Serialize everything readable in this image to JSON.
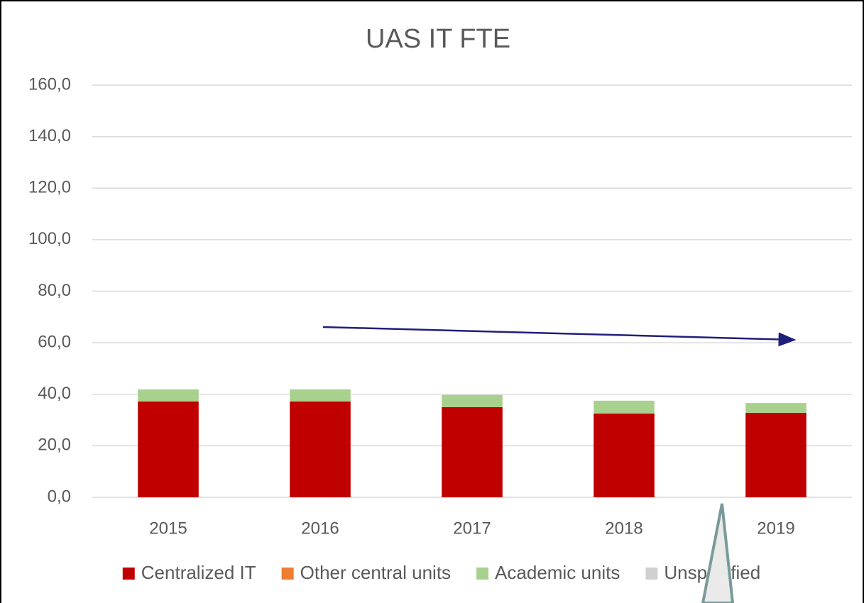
{
  "chart_data": {
    "type": "bar",
    "stacked": true,
    "title": "UAS IT FTE",
    "categories": [
      "2015",
      "2016",
      "2017",
      "2018",
      "2019"
    ],
    "series": [
      {
        "name": "Centralized IT",
        "color": "#c00000",
        "values": [
          37.2,
          37.2,
          35.0,
          32.5,
          32.8
        ]
      },
      {
        "name": "Other central units",
        "color": "#ed7d31",
        "values": [
          0,
          0,
          0,
          0,
          0
        ]
      },
      {
        "name": "Academic units",
        "color": "#a9d18e",
        "values": [
          4.7,
          4.7,
          4.7,
          5.0,
          3.8
        ]
      },
      {
        "name": "Unspecified",
        "color": "#d0d0d0",
        "values": [
          0,
          0,
          0,
          0,
          0
        ]
      }
    ],
    "ylim": [
      0,
      160
    ],
    "yticks": [
      {
        "value": 0,
        "label": "0,0"
      },
      {
        "value": 20,
        "label": "20,0"
      },
      {
        "value": 40,
        "label": "40,0"
      },
      {
        "value": 60,
        "label": "60,0"
      },
      {
        "value": 80,
        "label": "80,0"
      },
      {
        "value": 100,
        "label": "100,0"
      },
      {
        "value": 120,
        "label": "120,0"
      },
      {
        "value": 140,
        "label": "140,0"
      },
      {
        "value": 160,
        "label": "160,0"
      }
    ],
    "grid": true,
    "legend": "bottom"
  }
}
